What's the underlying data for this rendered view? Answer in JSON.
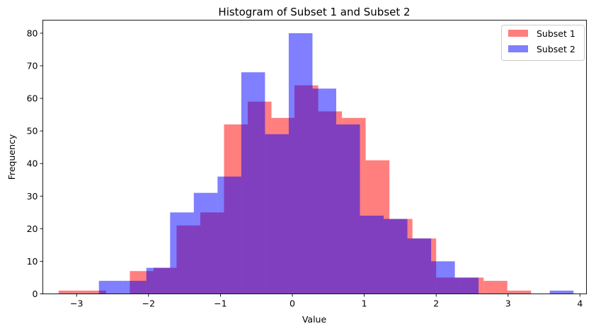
{
  "chart_data": {
    "type": "histogram",
    "title": "Histogram of Subset 1 and Subset 2",
    "xlabel": "Value",
    "ylabel": "Frequency",
    "xlim": [
      -3.47,
      4.09
    ],
    "ylim": [
      0,
      84
    ],
    "xticks": [
      -3,
      -2,
      -1,
      0,
      1,
      2,
      3,
      4
    ],
    "xtick_labels": [
      "−3",
      "−2",
      "−1",
      "0",
      "1",
      "2",
      "3",
      "4"
    ],
    "yticks": [
      0,
      10,
      20,
      30,
      40,
      50,
      60,
      70,
      80
    ],
    "ytick_labels": [
      "0",
      "10",
      "20",
      "30",
      "40",
      "50",
      "60",
      "70",
      "80"
    ],
    "legend_position": "top-right",
    "series": [
      {
        "name": "Subset 1",
        "color": "#ff0000",
        "opacity": 0.5,
        "bin_edges": [
          -3.25,
          -2.92,
          -2.59,
          -2.26,
          -1.93,
          -1.61,
          -1.28,
          -0.95,
          -0.62,
          -0.29,
          0.03,
          0.36,
          0.69,
          1.02,
          1.35,
          1.67,
          2.0,
          2.33,
          2.66,
          2.99,
          3.32
        ],
        "counts": [
          1,
          1,
          0,
          7,
          8,
          21,
          25,
          52,
          59,
          54,
          64,
          56,
          54,
          41,
          23,
          17,
          5,
          5,
          4,
          1
        ]
      },
      {
        "name": "Subset 2",
        "color": "#0000ff",
        "opacity": 0.5,
        "bin_edges": [
          -2.69,
          -2.36,
          -2.03,
          -1.7,
          -1.37,
          -1.04,
          -0.71,
          -0.38,
          -0.05,
          0.28,
          0.61,
          0.94,
          1.27,
          1.6,
          1.93,
          2.26,
          2.59,
          2.92,
          3.25,
          3.58,
          3.91
        ],
        "counts": [
          4,
          4,
          8,
          25,
          31,
          36,
          68,
          49,
          80,
          63,
          52,
          24,
          23,
          17,
          10,
          5,
          0,
          0,
          0,
          1
        ]
      }
    ]
  }
}
